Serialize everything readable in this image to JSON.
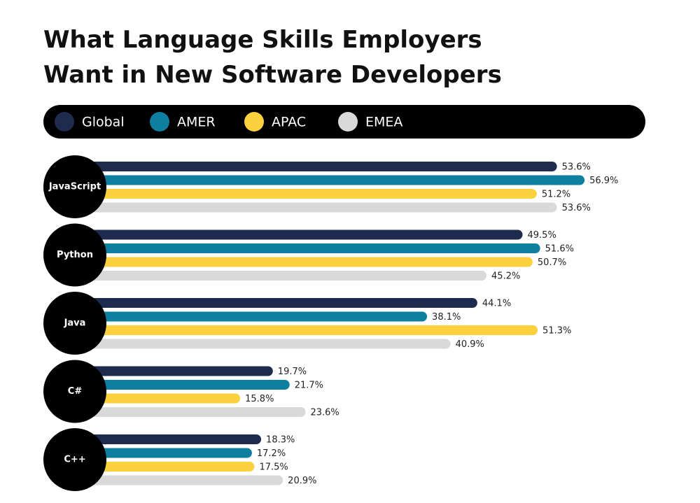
{
  "chart_data": {
    "type": "bar",
    "orientation": "horizontal",
    "title": [
      "What Language Skills Employers",
      "Want in New Software Developers"
    ],
    "categories": [
      "JavaScript",
      "Python",
      "Java",
      "C#",
      "C++"
    ],
    "series": [
      {
        "name": "Global",
        "color": "#1f2a4f",
        "values": [
          53.6,
          49.5,
          44.1,
          19.7,
          18.3
        ],
        "value_labels": [
          "53.6%",
          "49.5%",
          "44.1%",
          "19.7%",
          "18.3%"
        ]
      },
      {
        "name": "AMER",
        "color": "#0f7fa0",
        "values": [
          56.9,
          51.6,
          38.1,
          21.7,
          17.2
        ],
        "value_labels": [
          "56.9%",
          "51.6%",
          "38.1%",
          "21.7%",
          "17.2%"
        ]
      },
      {
        "name": "APAC",
        "color": "#fbd13e",
        "values": [
          51.2,
          50.7,
          51.3,
          15.8,
          17.5
        ],
        "value_labels": [
          "51.2%",
          "50.7%",
          "51.3%",
          "15.8%",
          "17.5%"
        ]
      },
      {
        "name": "EMEA",
        "color": "#d9d9d9",
        "values": [
          53.6,
          45.2,
          40.9,
          23.6,
          20.9
        ],
        "value_labels": [
          "53.6%",
          "45.2%",
          "40.9%",
          "23.6%",
          "20.9%"
        ]
      }
    ]
  }
}
